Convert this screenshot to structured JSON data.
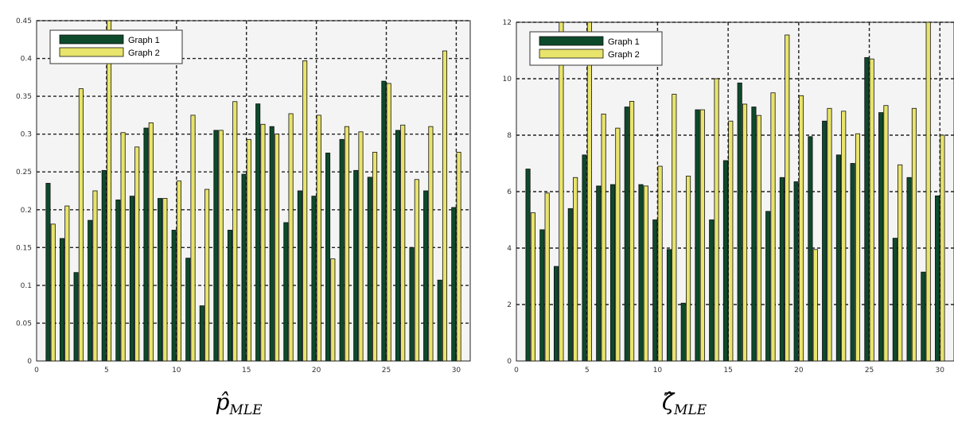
{
  "chart_data": [
    {
      "type": "bar",
      "caption": "p̂MLE",
      "caption_base": "p̂",
      "caption_sub": "MLE",
      "xlim": [
        0,
        31
      ],
      "ylim": [
        0,
        0.45
      ],
      "xticks": [
        0,
        5,
        10,
        15,
        20,
        25,
        30
      ],
      "xtick_labels": [
        "0",
        "5",
        "10",
        "15",
        "20",
        "25",
        "30"
      ],
      "yticks": [
        0,
        0.05,
        0.1,
        0.15,
        0.2,
        0.25,
        0.3,
        0.35,
        0.4,
        0.45
      ],
      "ytick_labels": [
        "0",
        "0.05",
        "0.1",
        "0.15",
        "0.2",
        "0.25",
        "0.3",
        "0.35",
        "0.4",
        "0.45"
      ],
      "grid": true,
      "legend_position": "top-left",
      "categories": [
        1,
        2,
        3,
        4,
        5,
        6,
        7,
        8,
        9,
        10,
        11,
        12,
        13,
        14,
        15,
        16,
        17,
        18,
        19,
        20,
        21,
        22,
        23,
        24,
        25,
        26,
        27,
        28,
        29,
        30
      ],
      "series": [
        {
          "name": "Graph 1",
          "color": "#0d4a2c",
          "values": [
            0.235,
            0.162,
            0.117,
            0.186,
            0.252,
            0.213,
            0.218,
            0.308,
            0.215,
            0.173,
            0.136,
            0.073,
            0.305,
            0.173,
            0.247,
            0.34,
            0.31,
            0.183,
            0.225,
            0.218,
            0.275,
            0.293,
            0.252,
            0.243,
            0.37,
            0.305,
            0.15,
            0.225,
            0.107,
            0.203
          ]
        },
        {
          "name": "Graph 2",
          "color": "#e8e46c",
          "values": [
            0.181,
            0.205,
            0.36,
            0.225,
            0.45,
            0.302,
            0.283,
            0.315,
            0.215,
            0.238,
            0.325,
            0.227,
            0.305,
            0.343,
            0.293,
            0.313,
            0.3,
            0.327,
            0.397,
            0.325,
            0.135,
            0.31,
            0.303,
            0.276,
            0.367,
            0.312,
            0.24,
            0.31,
            0.41,
            0.276
          ]
        }
      ]
    },
    {
      "type": "bar",
      "caption": "ζ̂MLE",
      "caption_base": "ζ̂",
      "caption_sub": "MLE",
      "xlim": [
        0,
        31
      ],
      "ylim": [
        0,
        12
      ],
      "xticks": [
        0,
        5,
        10,
        15,
        20,
        25,
        30
      ],
      "xtick_labels": [
        "0",
        "5",
        "10",
        "15",
        "20",
        "25",
        "30"
      ],
      "yticks": [
        0,
        2,
        4,
        6,
        8,
        10,
        12
      ],
      "ytick_labels": [
        "0",
        "2",
        "4",
        "6",
        "8",
        "10",
        "12"
      ],
      "grid": true,
      "legend_position": "top-left",
      "categories": [
        1,
        2,
        3,
        4,
        5,
        6,
        7,
        8,
        9,
        10,
        11,
        12,
        13,
        14,
        15,
        16,
        17,
        18,
        19,
        20,
        21,
        22,
        23,
        24,
        25,
        26,
        27,
        28,
        29,
        30
      ],
      "series": [
        {
          "name": "Graph 1",
          "color": "#0d4a2c",
          "values": [
            6.8,
            4.65,
            3.35,
            5.4,
            7.3,
            6.2,
            6.25,
            9.0,
            6.25,
            5.0,
            3.95,
            2.05,
            8.9,
            5.0,
            7.1,
            9.85,
            9.0,
            5.3,
            6.5,
            6.35,
            7.95,
            8.5,
            7.3,
            7.0,
            10.75,
            8.8,
            4.35,
            6.5,
            3.15,
            5.85
          ]
        },
        {
          "name": "Graph 2",
          "color": "#e8e46c",
          "values": [
            5.25,
            5.95,
            12.0,
            6.5,
            12.0,
            8.75,
            8.25,
            9.2,
            6.2,
            6.9,
            9.45,
            6.55,
            8.9,
            10.0,
            8.5,
            9.1,
            8.7,
            9.5,
            11.55,
            9.4,
            3.95,
            8.95,
            8.85,
            8.05,
            10.7,
            9.05,
            6.95,
            8.95,
            12.0,
            8.0
          ]
        }
      ]
    }
  ]
}
